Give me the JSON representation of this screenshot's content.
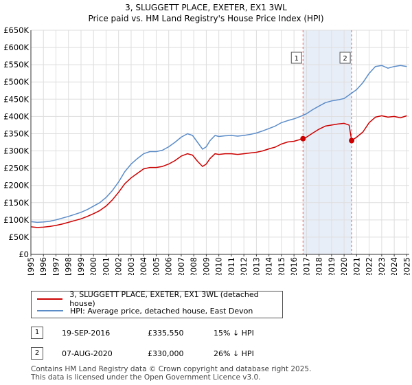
{
  "title_line1": "3, SLUGGETT PLACE, EXETER, EX1 3WL",
  "title_line2": "Price paid vs. HM Land Registry's House Price Index (HPI)",
  "colors": {
    "property": "#cc0000",
    "hpi": "#5b8cc8",
    "shade": "#e8eef8",
    "grid": "#dddddd",
    "marker_line": "#e06060"
  },
  "chart_data": {
    "type": "line",
    "title": "3, SLUGGETT PLACE, EXETER, EX1 3WL — Price paid vs. HM Land Registry's House Price Index (HPI)",
    "xlabel": "",
    "ylabel": "",
    "xlim": [
      1995,
      2025.2
    ],
    "ylim": [
      0,
      650000
    ],
    "y_ticks": [
      0,
      50000,
      100000,
      150000,
      200000,
      250000,
      300000,
      350000,
      400000,
      450000,
      500000,
      550000,
      600000,
      650000
    ],
    "y_tick_labels": [
      "£0",
      "£50K",
      "£100K",
      "£150K",
      "£200K",
      "£250K",
      "£300K",
      "£350K",
      "£400K",
      "£450K",
      "£500K",
      "£550K",
      "£600K",
      "£650K"
    ],
    "x_ticks": [
      1995,
      1996,
      1997,
      1998,
      1999,
      2000,
      2001,
      2002,
      2003,
      2004,
      2005,
      2006,
      2007,
      2008,
      2009,
      2010,
      2011,
      2012,
      2013,
      2014,
      2015,
      2016,
      2017,
      2018,
      2019,
      2020,
      2021,
      2022,
      2023,
      2024,
      2025
    ],
    "x_tick_labels": [
      "1995",
      "1996",
      "1997",
      "1998",
      "1999",
      "2000",
      "2001",
      "2002",
      "2003",
      "2004",
      "2005",
      "2006",
      "2007",
      "2008",
      "2009",
      "2010",
      "2011",
      "2012",
      "2013",
      "2014",
      "2015",
      "2016",
      "2017",
      "2018",
      "2019",
      "2020",
      "2021",
      "2022",
      "2023",
      "2024",
      "2025"
    ],
    "grid": true,
    "shaded_region": {
      "from": 2016.72,
      "to": 2020.6
    },
    "series": [
      {
        "name": "3, SLUGGETT PLACE, EXETER, EX1 3WL (detached house)",
        "color": "#cc0000",
        "x": [
          1995,
          1995.5,
          1996,
          1996.5,
          1997,
          1997.5,
          1998,
          1998.5,
          1999,
          1999.5,
          2000,
          2000.5,
          2001,
          2001.5,
          2002,
          2002.5,
          2003,
          2003.5,
          2004,
          2004.5,
          2005,
          2005.5,
          2006,
          2006.5,
          2007,
          2007.5,
          2007.9,
          2008.3,
          2008.7,
          2009,
          2009.3,
          2009.7,
          2010,
          2010.5,
          2011,
          2011.5,
          2012,
          2012.5,
          2013,
          2013.5,
          2014,
          2014.5,
          2015,
          2015.5,
          2016,
          2016.72,
          2017,
          2017.5,
          2018,
          2018.5,
          2019,
          2019.5,
          2020,
          2020.4,
          2020.6,
          2021,
          2021.5,
          2022,
          2022.5,
          2023,
          2023.5,
          2024,
          2024.5,
          2025
        ],
        "values": [
          80000,
          78000,
          79000,
          81000,
          84000,
          88000,
          93000,
          98000,
          103000,
          110000,
          118000,
          127000,
          140000,
          158000,
          180000,
          205000,
          222000,
          235000,
          248000,
          252000,
          252000,
          255000,
          262000,
          272000,
          285000,
          292000,
          288000,
          270000,
          255000,
          262000,
          278000,
          292000,
          290000,
          292000,
          292000,
          290000,
          292000,
          294000,
          296000,
          300000,
          306000,
          311000,
          320000,
          326000,
          328000,
          335550,
          340000,
          352000,
          363000,
          372000,
          375000,
          378000,
          380000,
          375000,
          330000,
          340000,
          355000,
          382000,
          398000,
          402000,
          398000,
          400000,
          396000,
          402000
        ]
      },
      {
        "name": "HPI: Average price, detached house, East Devon",
        "color": "#5b8cc8",
        "x": [
          1995,
          1995.5,
          1996,
          1996.5,
          1997,
          1997.5,
          1998,
          1998.5,
          1999,
          1999.5,
          2000,
          2000.5,
          2001,
          2001.5,
          2002,
          2002.5,
          2003,
          2003.5,
          2004,
          2004.5,
          2005,
          2005.5,
          2006,
          2006.5,
          2007,
          2007.5,
          2007.9,
          2008.3,
          2008.7,
          2009,
          2009.3,
          2009.7,
          2010,
          2010.5,
          2011,
          2011.5,
          2012,
          2012.5,
          2013,
          2013.5,
          2014,
          2014.5,
          2015,
          2015.5,
          2016,
          2016.5,
          2017,
          2017.5,
          2018,
          2018.5,
          2019,
          2019.5,
          2020,
          2020.5,
          2021,
          2021.5,
          2022,
          2022.5,
          2023,
          2023.5,
          2024,
          2024.5,
          2025
        ],
        "values": [
          95000,
          93000,
          94000,
          96000,
          100000,
          105000,
          110000,
          116000,
          122000,
          130000,
          140000,
          150000,
          165000,
          185000,
          210000,
          240000,
          262000,
          278000,
          292000,
          298000,
          298000,
          302000,
          312000,
          325000,
          340000,
          350000,
          345000,
          325000,
          305000,
          312000,
          330000,
          345000,
          342000,
          344000,
          345000,
          343000,
          345000,
          348000,
          352000,
          358000,
          365000,
          372000,
          382000,
          388000,
          393000,
          400000,
          408000,
          420000,
          430000,
          440000,
          445000,
          448000,
          452000,
          465000,
          478000,
          498000,
          525000,
          545000,
          548000,
          540000,
          545000,
          548000,
          545000
        ]
      }
    ],
    "sales": [
      {
        "label": "1",
        "x": 2016.72,
        "value": 335550
      },
      {
        "label": "2",
        "x": 2020.6,
        "value": 330000
      }
    ]
  },
  "legend": {
    "property_label": "3, SLUGGETT PLACE, EXETER, EX1 3WL (detached house)",
    "hpi_label": "HPI: Average price, detached house, East Devon"
  },
  "transactions": [
    {
      "num": "1",
      "date": "19-SEP-2016",
      "price": "£335,550",
      "hpi": "15% ↓ HPI"
    },
    {
      "num": "2",
      "date": "07-AUG-2020",
      "price": "£330,000",
      "hpi": "26% ↓ HPI"
    }
  ],
  "footer_line1": "Contains HM Land Registry data © Crown copyright and database right 2025.",
  "footer_line2": "This data is licensed under the Open Government Licence v3.0."
}
